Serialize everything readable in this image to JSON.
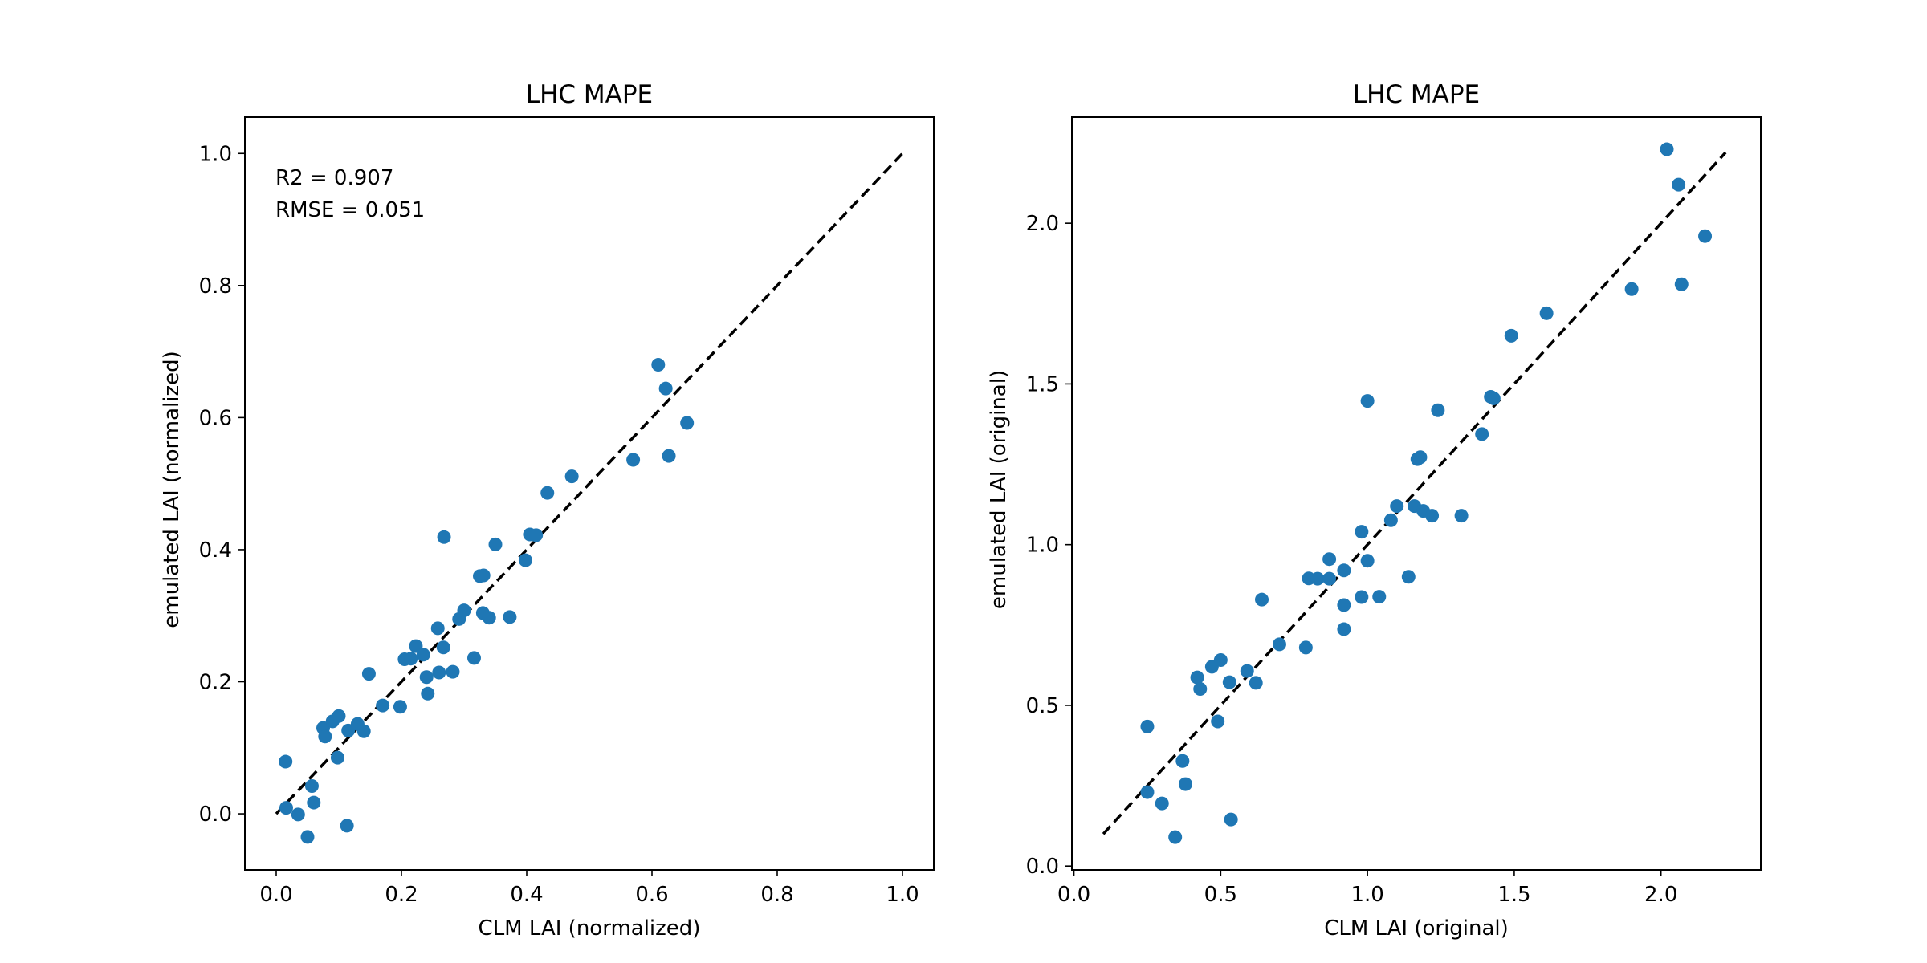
{
  "chart_data": [
    {
      "type": "scatter",
      "title": "LHC MAPE",
      "xlabel": "CLM LAI (normalized)",
      "ylabel": "emulated LAI (normalized)",
      "xlim": [
        -0.05,
        1.05
      ],
      "ylim": [
        -0.085,
        1.055
      ],
      "xticks": [
        "0.0",
        "0.2",
        "0.4",
        "0.6",
        "0.8",
        "1.0"
      ],
      "yticks": [
        "0.0",
        "0.2",
        "0.4",
        "0.6",
        "0.8",
        "1.0"
      ],
      "grid": false,
      "annotations": [
        "R2 = 0.907",
        "RMSE = 0.051"
      ],
      "reference_line": {
        "x": [
          0.0,
          1.0
        ],
        "y": [
          0.0,
          1.0
        ],
        "style": "dashed",
        "color": "#000000"
      },
      "marker_color": "#1f77b4",
      "points": [
        [
          0.015,
          0.079
        ],
        [
          0.016,
          0.009
        ],
        [
          0.035,
          -0.001
        ],
        [
          0.05,
          -0.035
        ],
        [
          0.057,
          0.042
        ],
        [
          0.06,
          0.017
        ],
        [
          0.075,
          0.13
        ],
        [
          0.078,
          0.117
        ],
        [
          0.09,
          0.14
        ],
        [
          0.1,
          0.148
        ],
        [
          0.098,
          0.085
        ],
        [
          0.113,
          -0.018
        ],
        [
          0.115,
          0.126
        ],
        [
          0.13,
          0.136
        ],
        [
          0.14,
          0.125
        ],
        [
          0.148,
          0.212
        ],
        [
          0.17,
          0.164
        ],
        [
          0.198,
          0.162
        ],
        [
          0.205,
          0.234
        ],
        [
          0.215,
          0.235
        ],
        [
          0.223,
          0.254
        ],
        [
          0.235,
          0.241
        ],
        [
          0.242,
          0.182
        ],
        [
          0.24,
          0.207
        ],
        [
          0.258,
          0.281
        ],
        [
          0.26,
          0.214
        ],
        [
          0.267,
          0.252
        ],
        [
          0.268,
          0.419
        ],
        [
          0.282,
          0.215
        ],
        [
          0.292,
          0.295
        ],
        [
          0.3,
          0.308
        ],
        [
          0.316,
          0.236
        ],
        [
          0.325,
          0.36
        ],
        [
          0.331,
          0.361
        ],
        [
          0.33,
          0.304
        ],
        [
          0.34,
          0.297
        ],
        [
          0.35,
          0.408
        ],
        [
          0.373,
          0.298
        ],
        [
          0.398,
          0.384
        ],
        [
          0.405,
          0.423
        ],
        [
          0.415,
          0.422
        ],
        [
          0.433,
          0.486
        ],
        [
          0.472,
          0.511
        ],
        [
          0.57,
          0.536
        ],
        [
          0.61,
          0.68
        ],
        [
          0.622,
          0.644
        ],
        [
          0.627,
          0.542
        ],
        [
          0.656,
          0.592
        ]
      ]
    },
    {
      "type": "scatter",
      "title": "LHC MAPE",
      "xlabel": "CLM LAI (original)",
      "ylabel": "emulated LAI (original)",
      "xlim": [
        -0.007,
        2.34
      ],
      "ylim": [
        -0.012,
        2.33
      ],
      "xticks": [
        "0.0",
        "0.5",
        "1.0",
        "1.5",
        "2.0"
      ],
      "yticks": [
        "0.0",
        "0.5",
        "1.0",
        "1.5",
        "2.0"
      ],
      "grid": false,
      "reference_line": {
        "x": [
          0.1,
          2.22
        ],
        "y": [
          0.1,
          2.22
        ],
        "style": "dashed",
        "color": "#000000"
      },
      "marker_color": "#1f77b4",
      "points": [
        [
          0.25,
          0.434
        ],
        [
          0.25,
          0.23
        ],
        [
          0.3,
          0.195
        ],
        [
          0.345,
          0.09
        ],
        [
          0.37,
          0.327
        ],
        [
          0.38,
          0.255
        ],
        [
          0.42,
          0.587
        ],
        [
          0.43,
          0.551
        ],
        [
          0.47,
          0.62
        ],
        [
          0.49,
          0.45
        ],
        [
          0.5,
          0.641
        ],
        [
          0.53,
          0.572
        ],
        [
          0.535,
          0.145
        ],
        [
          0.59,
          0.607
        ],
        [
          0.62,
          0.57
        ],
        [
          0.64,
          0.829
        ],
        [
          0.7,
          0.69
        ],
        [
          0.79,
          0.68
        ],
        [
          0.8,
          0.895
        ],
        [
          0.83,
          0.894
        ],
        [
          0.87,
          0.955
        ],
        [
          0.87,
          0.894
        ],
        [
          0.92,
          0.92
        ],
        [
          0.92,
          0.812
        ],
        [
          0.92,
          0.737
        ],
        [
          0.98,
          1.04
        ],
        [
          0.98,
          0.837
        ],
        [
          1.0,
          0.95
        ],
        [
          1.0,
          1.447
        ],
        [
          1.04,
          0.838
        ],
        [
          1.08,
          1.076
        ],
        [
          1.1,
          1.12
        ],
        [
          1.14,
          0.9
        ],
        [
          1.16,
          1.12
        ],
        [
          1.17,
          1.266
        ],
        [
          1.18,
          1.272
        ],
        [
          1.19,
          1.105
        ],
        [
          1.22,
          1.09
        ],
        [
          1.24,
          1.418
        ],
        [
          1.32,
          1.09
        ],
        [
          1.39,
          1.344
        ],
        [
          1.42,
          1.46
        ],
        [
          1.43,
          1.455
        ],
        [
          1.49,
          1.65
        ],
        [
          1.61,
          1.72
        ],
        [
          1.9,
          1.795
        ],
        [
          2.02,
          2.23
        ],
        [
          2.06,
          2.12
        ],
        [
          2.07,
          1.81
        ],
        [
          2.15,
          1.96
        ]
      ]
    }
  ]
}
